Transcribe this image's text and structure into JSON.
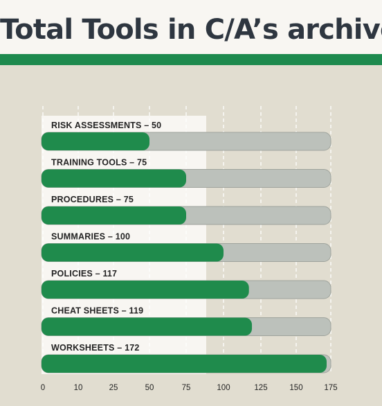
{
  "title": "Total Tools in C/A’s archive",
  "colors": {
    "background": "#e1ddd0",
    "panel": "#f8f6f2",
    "accent": "#1e8a4e",
    "bar_fill": "#1f8b4c",
    "track": "#bcc1bb",
    "track_border": "#9ea39c",
    "title_text": "#2e3640"
  },
  "chart_data": {
    "type": "bar",
    "orientation": "horizontal",
    "title": "Total Tools in C/A’s archive",
    "categories": [
      "RISK ASSESSMENTS",
      "TRAINING TOOLS",
      "PROCEDURES",
      "SUMMARIES",
      "POLICIES",
      "CHEAT SHEETS",
      "WORKSHEETS"
    ],
    "values": [
      50,
      75,
      75,
      100,
      117,
      119,
      172
    ],
    "bar_labels": [
      "RISK ASSESSMENTS  –  50",
      "TRAINING TOOLS  –  75",
      "PROCEDURES  –  75",
      "SUMMARIES  –  100",
      "POLICIES  –  117",
      "CHEAT SHEETS  –  119",
      "WORKSHEETS  –  172"
    ],
    "x_ticks": [
      "0",
      "10",
      "25",
      "50",
      "75",
      "100",
      "125",
      "150",
      "175"
    ],
    "xlim": [
      0,
      175
    ],
    "grid": "vertical dashed lines",
    "xlabel": "",
    "ylabel": ""
  }
}
